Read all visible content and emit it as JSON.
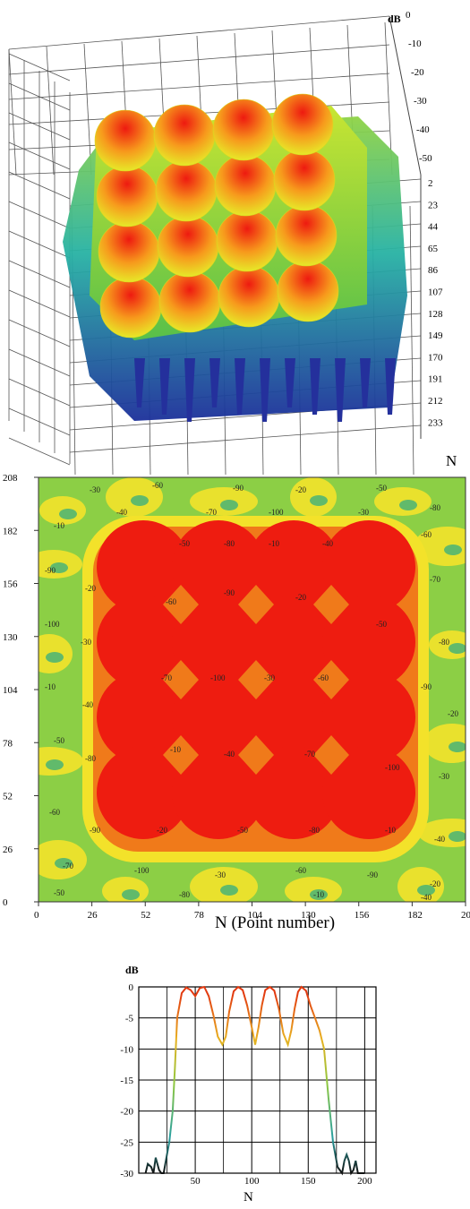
{
  "surface": {
    "z_unit": "dB",
    "z_ticks": [
      "0",
      "-10",
      "-20",
      "-30",
      "-40",
      "-50"
    ],
    "n_ticks": [
      "2",
      "23",
      "44",
      "65",
      "86",
      "107",
      "128",
      "149",
      "170",
      "191",
      "212",
      "233"
    ],
    "x_label": "N",
    "rows": 4,
    "cols": 4
  },
  "contour": {
    "x_label": "N (Point number)",
    "x_ticks": [
      "0",
      "26",
      "52",
      "78",
      "104",
      "130",
      "156",
      "182",
      "20"
    ],
    "y_ticks": [
      "208",
      "182",
      "156",
      "130",
      "104",
      "78",
      "52",
      "26",
      "0"
    ],
    "level_labels": [
      "-10",
      "-20",
      "-30",
      "-40",
      "-50",
      "-60",
      "-70",
      "-80",
      "-90",
      "-100"
    ],
    "colors": {
      "high": "#ee1c10",
      "mid": "#f07a1a",
      "low": "#f3e22a",
      "floor": "#8ccf45"
    }
  },
  "chart_data": {
    "type": "line",
    "ylabel": "dB",
    "xlabel": "N",
    "ylim": [
      -30,
      0
    ],
    "xlim": [
      0,
      210
    ],
    "yticks": [
      "0",
      "-5",
      "-10",
      "-15",
      "-20",
      "-25",
      "-30"
    ],
    "xticks": [
      "50",
      "100",
      "150",
      "200"
    ],
    "series": [
      {
        "x": [
          6,
          8,
          11,
          13,
          15,
          18,
          20,
          22,
          25,
          27,
          30,
          32,
          34,
          38,
          42,
          46,
          50,
          54,
          58,
          62,
          66,
          70,
          74,
          77,
          80,
          84,
          88,
          92,
          96,
          100,
          103,
          106,
          109,
          112,
          116,
          120,
          124,
          128,
          132,
          135,
          138,
          141,
          144,
          148,
          152,
          156,
          160,
          164,
          168,
          172,
          176,
          180,
          182,
          184,
          186,
          188,
          190,
          192,
          194,
          196,
          198,
          200
        ],
        "y": [
          -30,
          -28.5,
          -29,
          -30,
          -27.5,
          -29.5,
          -30,
          -30,
          -27,
          -25,
          -20,
          -13,
          -5,
          -1,
          -0.1,
          -0.5,
          -1.5,
          -0.2,
          0,
          -1.5,
          -4.5,
          -8,
          -9.3,
          -8,
          -4,
          -0.7,
          0,
          -0.5,
          -3,
          -6.5,
          -9.3,
          -6.5,
          -3,
          -0.5,
          0,
          -0.6,
          -3.5,
          -7.5,
          -9.3,
          -7,
          -3.5,
          -0.8,
          0,
          -0.6,
          -3,
          -5,
          -7,
          -10,
          -18,
          -25,
          -29,
          -30,
          -28,
          -27,
          -28,
          -30,
          -29.5,
          -28,
          -30,
          -30,
          -30,
          -30
        ]
      }
    ]
  }
}
